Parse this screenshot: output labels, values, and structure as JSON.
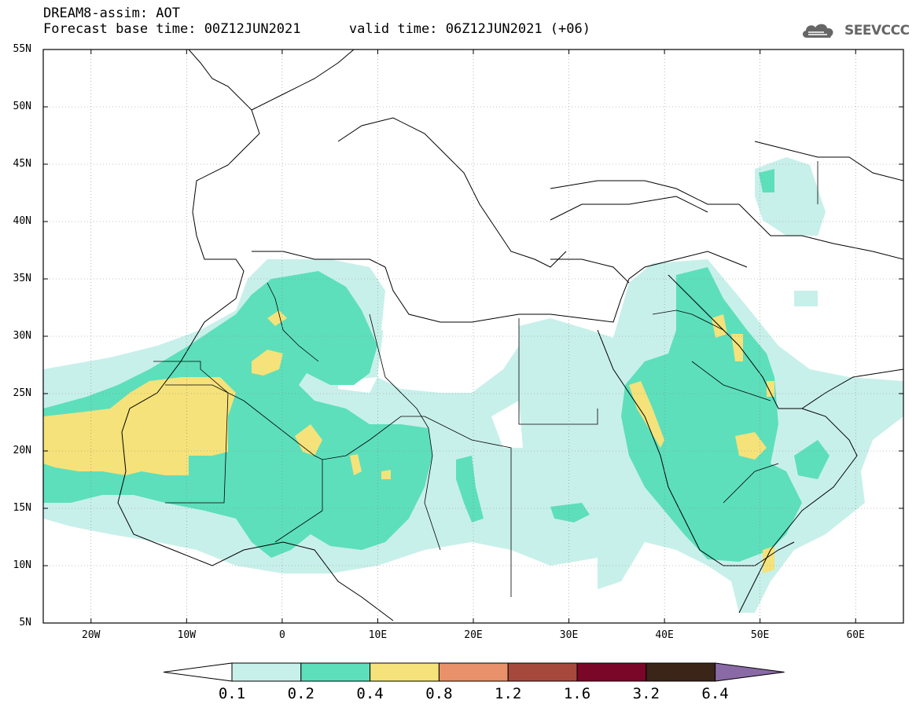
{
  "header": {
    "title_line1": "DREAM8-assim: AOT",
    "title_line2": "Forecast base time: 00Z12JUN2021      valid time: 06Z12JUN2021 (+06)",
    "logo_text": "SEEVCCC"
  },
  "map": {
    "lat_labels": [
      "55N",
      "50N",
      "45N",
      "40N",
      "35N",
      "30N",
      "25N",
      "20N",
      "15N",
      "10N",
      "5N"
    ],
    "lon_labels": [
      "20W",
      "10W",
      "0",
      "10E",
      "20E",
      "30E",
      "40E",
      "50E",
      "60E"
    ],
    "lat_range": [
      5,
      55
    ],
    "lon_range": [
      -25,
      65
    ],
    "grid": "dotted"
  },
  "legend": {
    "levels": [
      "0.1",
      "0.2",
      "0.4",
      "0.8",
      "1.2",
      "1.6",
      "3.2",
      "6.4"
    ],
    "colors": [
      "#ffffff",
      "#c8f0ea",
      "#5ddfbb",
      "#f5e27a",
      "#e8916a",
      "#a5493c",
      "#7a0728",
      "#3b2418",
      "#8a6aa6"
    ]
  },
  "colors": {
    "aot_0_1": "#c8f0ea",
    "aot_0_2": "#5ddfbb",
    "aot_0_4": "#f5e27a"
  }
}
